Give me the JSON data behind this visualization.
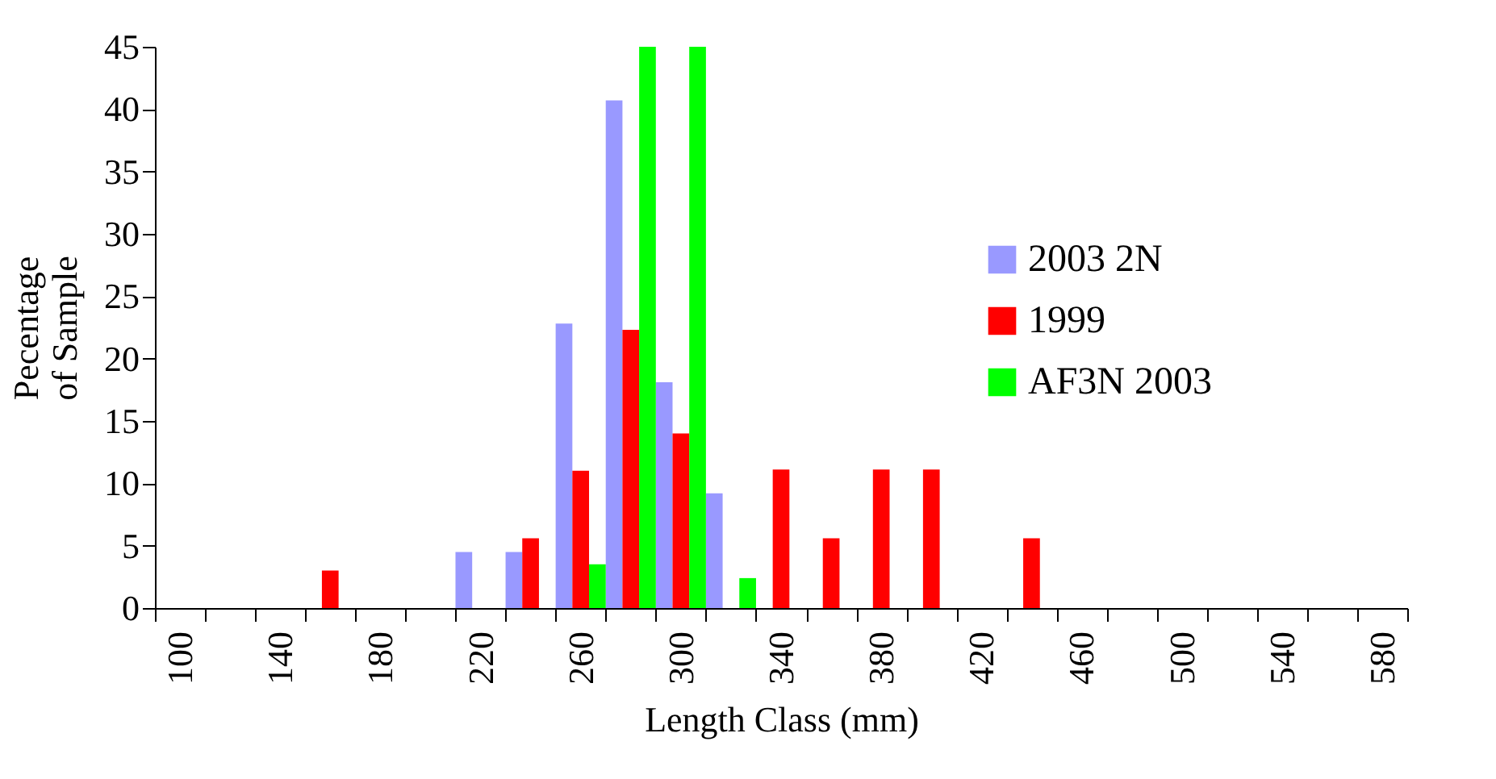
{
  "chart_data": {
    "type": "bar",
    "xlabel": "Length Class  (mm)",
    "ylabel": "Pecentage\nof Sample",
    "categories": [
      "100",
      null,
      "140",
      null,
      "180",
      null,
      "220",
      null,
      "260",
      null,
      "300",
      null,
      "340",
      null,
      "380",
      null,
      "420",
      null,
      "460",
      null,
      "500",
      null,
      "540",
      null,
      "580"
    ],
    "series": [
      {
        "name": "2003 2N",
        "color": "#9999ff",
        "values": [
          0,
          0,
          0,
          0,
          0,
          0,
          4.5,
          4.5,
          22.8,
          40.7,
          18.1,
          9.2,
          0,
          0,
          0,
          0,
          0,
          0,
          0,
          0,
          0,
          0,
          0,
          0,
          0
        ]
      },
      {
        "name": "1999",
        "color": "#ff0000",
        "values": [
          0,
          0,
          0,
          3.0,
          0,
          0,
          0,
          5.6,
          11.0,
          22.3,
          14.0,
          0,
          11.1,
          5.6,
          11.1,
          11.1,
          0,
          5.6,
          0,
          0,
          0,
          0,
          0,
          0,
          0
        ]
      },
      {
        "name": "AF3N 2003",
        "color": "#00ff00",
        "values": [
          0,
          0,
          0,
          0,
          0,
          0,
          0,
          0,
          3.5,
          45,
          45,
          2.4,
          0,
          0,
          0,
          0,
          0,
          0,
          0,
          0,
          0,
          0,
          0,
          0,
          0
        ]
      }
    ],
    "ylim": [
      0,
      45
    ],
    "yticks": [
      0,
      5,
      10,
      15,
      20,
      25,
      30,
      35,
      40,
      45
    ],
    "grid": false,
    "legend": "top right"
  }
}
